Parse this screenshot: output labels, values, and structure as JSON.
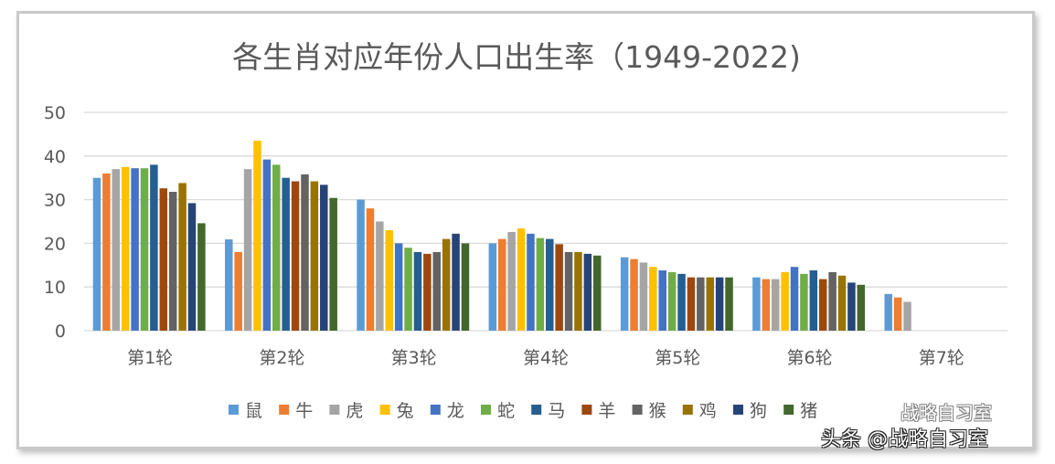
{
  "chart_data": {
    "type": "bar",
    "title": "各生肖对应年份人口出生率（1949-2022)",
    "xlabel": "",
    "ylabel": "",
    "ylim": [
      0,
      50
    ],
    "yticks": [
      "0",
      "10",
      "20",
      "30",
      "40",
      "50"
    ],
    "grid": true,
    "legend_position": "bottom",
    "categories": [
      "第1轮",
      "第2轮",
      "第3轮",
      "第4轮",
      "第5轮",
      "第6轮",
      "第7轮"
    ],
    "series": [
      {
        "name": "鼠",
        "color": "#5B9BD5",
        "values": [
          35.0,
          20.9,
          30.0,
          20.0,
          16.8,
          12.2,
          8.4
        ]
      },
      {
        "name": "牛",
        "color": "#ED7D31",
        "values": [
          36.0,
          18.0,
          28.0,
          21.0,
          16.4,
          11.8,
          7.6
        ]
      },
      {
        "name": "虎",
        "color": "#A5A5A5",
        "values": [
          37.0,
          37.0,
          25.0,
          22.6,
          15.6,
          11.8,
          6.6
        ]
      },
      {
        "name": "兔",
        "color": "#FFC000",
        "values": [
          37.5,
          43.5,
          23.0,
          23.4,
          14.6,
          13.4,
          null
        ]
      },
      {
        "name": "龙",
        "color": "#4472C4",
        "values": [
          37.2,
          39.2,
          20.0,
          22.2,
          13.8,
          14.6,
          null
        ]
      },
      {
        "name": "蛇",
        "color": "#70AD47",
        "values": [
          37.2,
          38.0,
          19.0,
          21.2,
          13.4,
          13.0,
          null
        ]
      },
      {
        "name": "马",
        "color": "#255E91",
        "values": [
          38.0,
          35.0,
          18.0,
          21.0,
          13.0,
          13.8,
          null
        ]
      },
      {
        "name": "羊",
        "color": "#9E480E",
        "values": [
          32.6,
          34.2,
          17.6,
          19.8,
          12.2,
          11.8,
          null
        ]
      },
      {
        "name": "猴",
        "color": "#636363",
        "values": [
          31.8,
          35.8,
          18.0,
          18.0,
          12.2,
          13.4,
          null
        ]
      },
      {
        "name": "鸡",
        "color": "#997300",
        "values": [
          33.8,
          34.2,
          21.0,
          18.0,
          12.2,
          12.6,
          null
        ]
      },
      {
        "name": "狗",
        "color": "#264478",
        "values": [
          29.2,
          33.4,
          22.2,
          17.6,
          12.2,
          11.0,
          null
        ]
      },
      {
        "name": "猪",
        "color": "#43682B",
        "values": [
          24.6,
          30.4,
          20.0,
          17.2,
          12.2,
          10.5,
          null
        ]
      }
    ]
  },
  "watermark": {
    "inner": "战略自习室",
    "outer": "头条 @战略自习室"
  }
}
